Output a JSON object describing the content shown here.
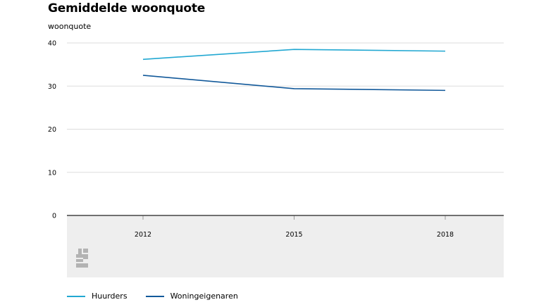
{
  "chart_data": {
    "type": "line",
    "title": "Gemiddelde woonquote",
    "ylabel": "woonquote",
    "xlabel": "",
    "categories": [
      "2012",
      "2015",
      "2018"
    ],
    "ylim": [
      0,
      40
    ],
    "yticks": [
      0,
      10,
      20,
      30,
      40
    ],
    "grid": true,
    "legend_position": "bottom-left",
    "series": [
      {
        "name": "Huurders",
        "color": "#22a8d2",
        "values": [
          36.2,
          38.5,
          38.1
        ]
      },
      {
        "name": "Woningeigenaren",
        "color": "#12599a",
        "values": [
          32.5,
          29.4,
          29.0
        ]
      }
    ]
  },
  "branding": {
    "logo_icon": "cbs-logo-icon"
  }
}
